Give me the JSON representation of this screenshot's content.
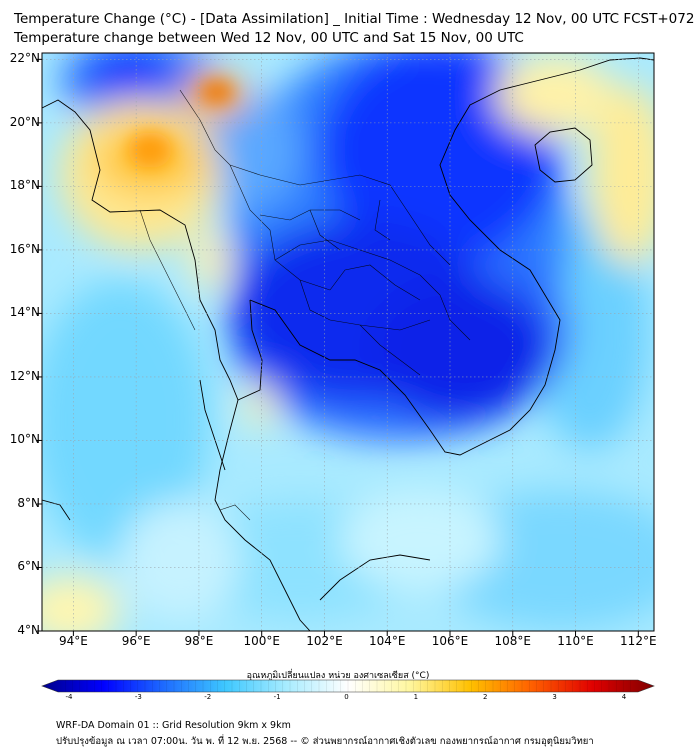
{
  "header": {
    "title_line1": "Temperature Change (°C) - [Data Assimilation] _ Initial Time : Wednesday 12 Nov, 00 UTC FCST+072",
    "title_line2": "Temperature change between Wed 12 Nov, 00 UTC and Sat 15 Nov, 00 UTC"
  },
  "map": {
    "lat_labels": [
      "22°N",
      "20°N",
      "18°N",
      "16°N",
      "14°N",
      "12°N",
      "10°N",
      "8°N",
      "6°N",
      "4°N"
    ],
    "lon_labels": [
      "94°E",
      "96°E",
      "98°E",
      "100°E",
      "102°E",
      "104°E",
      "106°E",
      "108°E",
      "110°E",
      "112°E"
    ],
    "lat_values": [
      22,
      20,
      18,
      16,
      14,
      12,
      10,
      8,
      6,
      4
    ],
    "lon_values": [
      94,
      96,
      98,
      100,
      102,
      104,
      106,
      108,
      110,
      112
    ],
    "extent": {
      "lon_min": 93,
      "lon_max": 112.5,
      "lat_min": 4,
      "lat_max": 22.2
    },
    "gridlines": true
  },
  "colorbar": {
    "label": "อุณหภูมิเปลี่ยนแปลง หน่วย องศาเซลเซียส (°C)",
    "ticks": [
      "-4",
      "-3",
      "-2",
      "-1",
      "0",
      "1",
      "2",
      "3",
      "4"
    ],
    "tick_values": [
      -4,
      -3,
      -2,
      -1,
      0,
      1,
      2,
      3,
      4
    ],
    "range": [
      -4,
      4
    ],
    "colors": [
      "#00008b",
      "#0000ff",
      "#1e6cff",
      "#3ec8ff",
      "#a8ecff",
      "#ffffff",
      "#fff7a0",
      "#ffc000",
      "#ff6000",
      "#e00000",
      "#800000"
    ]
  },
  "footer": {
    "line1": "WRF-DA Domain 01 :: Grid Resolution 9km x 9km",
    "line2": "ปรับปรุงข้อมูล ณ เวลา 07:00น. วัน พ. ที่ 12 พ.ย. 2568 -- © ส่วนพยากรณ์อากาศเชิงตัวเลข กองพยากรณ์อากาศ กรมอุตุนิยมวิทยา"
  }
}
